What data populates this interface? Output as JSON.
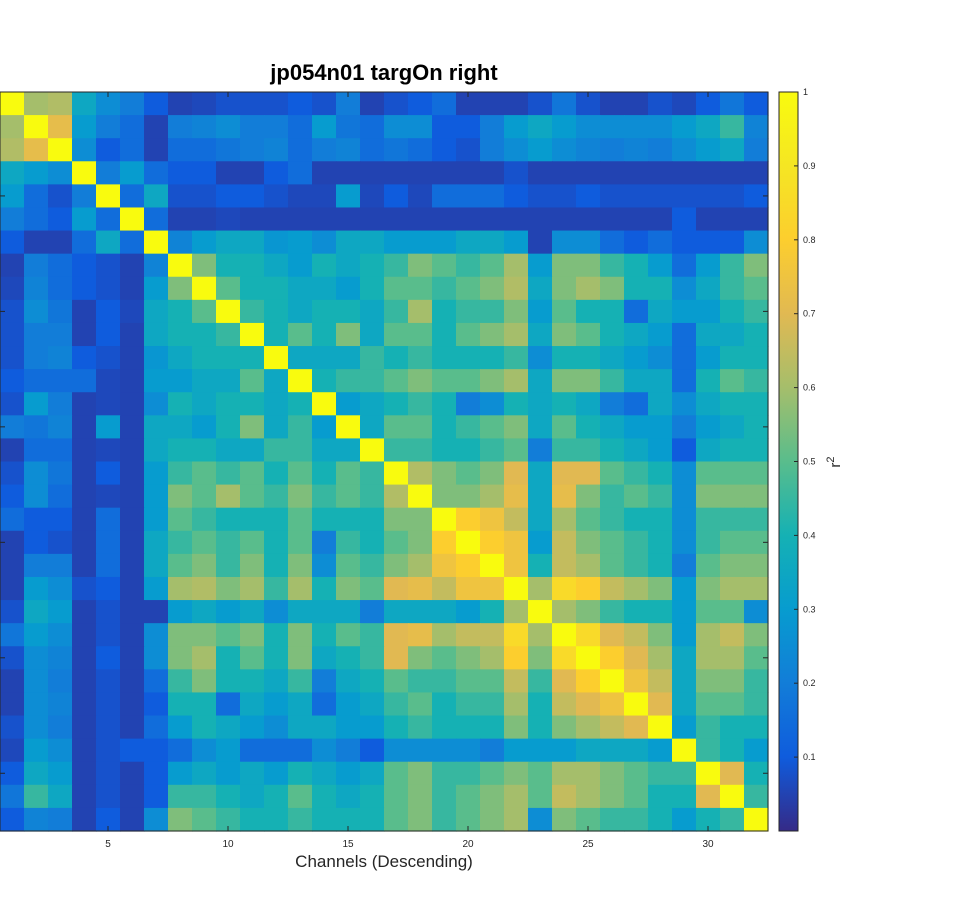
{
  "chart_data": {
    "type": "heatmap",
    "title": "jp054n01 targOn right",
    "xlabel": "Channels (Descending)",
    "ylabel": "",
    "colorbar_label": "r",
    "colorbar_label_superscript": "2",
    "x_ticks": [
      5,
      10,
      15,
      20,
      25,
      30
    ],
    "colorbar_ticks": [
      "1",
      "0.9",
      "0.8",
      "0.7",
      "0.6",
      "0.5",
      "0.4",
      "0.3",
      "0.2",
      "0.1"
    ],
    "colorbar_range": [
      0,
      1
    ],
    "colormap": "parula",
    "size": 32,
    "diagonal_value": 1.0,
    "matrix": [
      [
        1.0,
        0.6,
        0.62,
        0.35,
        0.25,
        0.2,
        0.1,
        0.05,
        0.06,
        0.08,
        0.08,
        0.08,
        0.1,
        0.08,
        0.2,
        0.05,
        0.08,
        0.1,
        0.15,
        0.05,
        0.05,
        0.05,
        0.08,
        0.18,
        0.08,
        0.05,
        0.05,
        0.08,
        0.06,
        0.1,
        0.18,
        0.1
      ],
      [
        0.6,
        1.0,
        0.72,
        0.3,
        0.2,
        0.15,
        0.05,
        0.2,
        0.22,
        0.25,
        0.2,
        0.2,
        0.15,
        0.3,
        0.18,
        0.15,
        0.25,
        0.25,
        0.1,
        0.1,
        0.2,
        0.3,
        0.35,
        0.3,
        0.25,
        0.25,
        0.25,
        0.25,
        0.3,
        0.35,
        0.45,
        0.22
      ],
      [
        0.62,
        0.72,
        1.0,
        0.25,
        0.1,
        0.15,
        0.05,
        0.15,
        0.15,
        0.18,
        0.2,
        0.22,
        0.15,
        0.2,
        0.22,
        0.15,
        0.18,
        0.15,
        0.1,
        0.08,
        0.2,
        0.25,
        0.3,
        0.25,
        0.22,
        0.2,
        0.22,
        0.2,
        0.25,
        0.3,
        0.35,
        0.2
      ],
      [
        0.35,
        0.3,
        0.25,
        1.0,
        0.2,
        0.3,
        0.15,
        0.1,
        0.1,
        0.05,
        0.05,
        0.1,
        0.15,
        0.05,
        0.05,
        0.05,
        0.05,
        0.05,
        0.05,
        0.05,
        0.05,
        0.08,
        0.05,
        0.05,
        0.05,
        0.05,
        0.05,
        0.05,
        0.05,
        0.05,
        0.05,
        0.05
      ],
      [
        0.3,
        0.15,
        0.08,
        0.2,
        1.0,
        0.15,
        0.35,
        0.08,
        0.08,
        0.1,
        0.1,
        0.08,
        0.06,
        0.06,
        0.3,
        0.06,
        0.1,
        0.06,
        0.15,
        0.15,
        0.15,
        0.1,
        0.08,
        0.08,
        0.1,
        0.08,
        0.08,
        0.08,
        0.08,
        0.08,
        0.08,
        0.1
      ],
      [
        0.2,
        0.15,
        0.1,
        0.3,
        0.15,
        1.0,
        0.15,
        0.05,
        0.05,
        0.06,
        0.05,
        0.05,
        0.05,
        0.05,
        0.05,
        0.05,
        0.05,
        0.05,
        0.05,
        0.05,
        0.05,
        0.05,
        0.05,
        0.05,
        0.05,
        0.05,
        0.05,
        0.05,
        0.1,
        0.05,
        0.05,
        0.05
      ],
      [
        0.1,
        0.05,
        0.05,
        0.15,
        0.35,
        0.15,
        1.0,
        0.22,
        0.3,
        0.35,
        0.35,
        0.28,
        0.3,
        0.25,
        0.35,
        0.35,
        0.3,
        0.3,
        0.3,
        0.35,
        0.35,
        0.3,
        0.05,
        0.25,
        0.25,
        0.15,
        0.1,
        0.15,
        0.1,
        0.1,
        0.1,
        0.25
      ],
      [
        0.05,
        0.2,
        0.15,
        0.1,
        0.08,
        0.05,
        0.22,
        1.0,
        0.55,
        0.4,
        0.4,
        0.35,
        0.3,
        0.4,
        0.35,
        0.4,
        0.45,
        0.55,
        0.5,
        0.45,
        0.5,
        0.6,
        0.3,
        0.55,
        0.55,
        0.45,
        0.4,
        0.3,
        0.15,
        0.3,
        0.45,
        0.55
      ],
      [
        0.06,
        0.22,
        0.15,
        0.1,
        0.08,
        0.05,
        0.3,
        0.55,
        1.0,
        0.5,
        0.4,
        0.4,
        0.35,
        0.35,
        0.3,
        0.4,
        0.5,
        0.5,
        0.45,
        0.5,
        0.55,
        0.62,
        0.35,
        0.55,
        0.6,
        0.55,
        0.4,
        0.4,
        0.25,
        0.35,
        0.45,
        0.5
      ],
      [
        0.08,
        0.25,
        0.18,
        0.05,
        0.1,
        0.06,
        0.35,
        0.4,
        0.5,
        1.0,
        0.45,
        0.4,
        0.35,
        0.4,
        0.4,
        0.35,
        0.45,
        0.6,
        0.4,
        0.45,
        0.45,
        0.55,
        0.3,
        0.5,
        0.4,
        0.4,
        0.15,
        0.35,
        0.3,
        0.3,
        0.4,
        0.45
      ],
      [
        0.08,
        0.2,
        0.2,
        0.05,
        0.1,
        0.05,
        0.35,
        0.4,
        0.4,
        0.45,
        1.0,
        0.4,
        0.5,
        0.4,
        0.55,
        0.35,
        0.5,
        0.5,
        0.4,
        0.5,
        0.55,
        0.6,
        0.35,
        0.55,
        0.5,
        0.4,
        0.35,
        0.3,
        0.15,
        0.35,
        0.35,
        0.4
      ],
      [
        0.08,
        0.2,
        0.22,
        0.1,
        0.08,
        0.05,
        0.28,
        0.35,
        0.4,
        0.4,
        0.4,
        1.0,
        0.35,
        0.35,
        0.35,
        0.45,
        0.4,
        0.45,
        0.4,
        0.4,
        0.4,
        0.45,
        0.25,
        0.4,
        0.4,
        0.35,
        0.3,
        0.25,
        0.15,
        0.3,
        0.4,
        0.4
      ],
      [
        0.1,
        0.15,
        0.15,
        0.15,
        0.06,
        0.05,
        0.3,
        0.3,
        0.35,
        0.35,
        0.5,
        0.35,
        1.0,
        0.4,
        0.45,
        0.45,
        0.5,
        0.55,
        0.5,
        0.5,
        0.55,
        0.6,
        0.35,
        0.55,
        0.55,
        0.45,
        0.35,
        0.35,
        0.15,
        0.4,
        0.5,
        0.45
      ],
      [
        0.08,
        0.3,
        0.2,
        0.05,
        0.06,
        0.05,
        0.25,
        0.4,
        0.35,
        0.4,
        0.4,
        0.35,
        0.4,
        1.0,
        0.3,
        0.35,
        0.4,
        0.45,
        0.4,
        0.2,
        0.25,
        0.4,
        0.35,
        0.4,
        0.35,
        0.2,
        0.15,
        0.35,
        0.25,
        0.35,
        0.4,
        0.4
      ],
      [
        0.2,
        0.18,
        0.22,
        0.05,
        0.3,
        0.05,
        0.35,
        0.35,
        0.3,
        0.4,
        0.55,
        0.35,
        0.45,
        0.3,
        1.0,
        0.35,
        0.5,
        0.5,
        0.4,
        0.45,
        0.5,
        0.55,
        0.35,
        0.5,
        0.4,
        0.35,
        0.3,
        0.3,
        0.2,
        0.3,
        0.35,
        0.4
      ],
      [
        0.05,
        0.15,
        0.15,
        0.05,
        0.06,
        0.05,
        0.35,
        0.4,
        0.4,
        0.35,
        0.35,
        0.45,
        0.45,
        0.35,
        0.35,
        1.0,
        0.45,
        0.45,
        0.4,
        0.4,
        0.45,
        0.5,
        0.2,
        0.45,
        0.45,
        0.4,
        0.35,
        0.3,
        0.1,
        0.35,
        0.4,
        0.4
      ],
      [
        0.08,
        0.25,
        0.18,
        0.05,
        0.1,
        0.05,
        0.3,
        0.45,
        0.5,
        0.45,
        0.5,
        0.4,
        0.5,
        0.4,
        0.5,
        0.45,
        1.0,
        0.62,
        0.55,
        0.5,
        0.55,
        0.7,
        0.35,
        0.7,
        0.7,
        0.5,
        0.45,
        0.4,
        0.25,
        0.5,
        0.5,
        0.5
      ],
      [
        0.1,
        0.25,
        0.15,
        0.05,
        0.06,
        0.05,
        0.3,
        0.55,
        0.5,
        0.6,
        0.5,
        0.45,
        0.55,
        0.45,
        0.5,
        0.45,
        0.62,
        1.0,
        0.55,
        0.55,
        0.6,
        0.72,
        0.35,
        0.72,
        0.55,
        0.45,
        0.5,
        0.45,
        0.25,
        0.55,
        0.55,
        0.55
      ],
      [
        0.15,
        0.1,
        0.1,
        0.05,
        0.15,
        0.05,
        0.3,
        0.5,
        0.45,
        0.4,
        0.4,
        0.4,
        0.5,
        0.4,
        0.4,
        0.4,
        0.55,
        0.55,
        1.0,
        0.8,
        0.75,
        0.65,
        0.35,
        0.6,
        0.5,
        0.45,
        0.4,
        0.4,
        0.25,
        0.45,
        0.45,
        0.45
      ],
      [
        0.05,
        0.1,
        0.08,
        0.05,
        0.15,
        0.05,
        0.35,
        0.45,
        0.5,
        0.45,
        0.5,
        0.4,
        0.5,
        0.2,
        0.45,
        0.4,
        0.5,
        0.55,
        0.8,
        1.0,
        0.8,
        0.75,
        0.3,
        0.65,
        0.55,
        0.5,
        0.45,
        0.4,
        0.25,
        0.45,
        0.5,
        0.5
      ],
      [
        0.05,
        0.2,
        0.2,
        0.05,
        0.15,
        0.05,
        0.35,
        0.5,
        0.55,
        0.45,
        0.55,
        0.4,
        0.55,
        0.25,
        0.5,
        0.45,
        0.55,
        0.6,
        0.75,
        0.8,
        1.0,
        0.75,
        0.4,
        0.65,
        0.6,
        0.5,
        0.45,
        0.4,
        0.2,
        0.5,
        0.55,
        0.55
      ],
      [
        0.05,
        0.3,
        0.25,
        0.08,
        0.1,
        0.05,
        0.3,
        0.6,
        0.62,
        0.55,
        0.6,
        0.45,
        0.6,
        0.4,
        0.55,
        0.5,
        0.7,
        0.72,
        0.65,
        0.75,
        0.75,
        1.0,
        0.6,
        0.85,
        0.8,
        0.65,
        0.6,
        0.55,
        0.3,
        0.55,
        0.6,
        0.6
      ],
      [
        0.08,
        0.35,
        0.3,
        0.05,
        0.08,
        0.05,
        0.05,
        0.3,
        0.35,
        0.3,
        0.35,
        0.25,
        0.35,
        0.35,
        0.35,
        0.2,
        0.35,
        0.35,
        0.35,
        0.3,
        0.4,
        0.6,
        1.0,
        0.6,
        0.55,
        0.45,
        0.4,
        0.4,
        0.3,
        0.5,
        0.5,
        0.25
      ],
      [
        0.18,
        0.3,
        0.25,
        0.05,
        0.08,
        0.05,
        0.25,
        0.55,
        0.55,
        0.5,
        0.55,
        0.4,
        0.55,
        0.4,
        0.5,
        0.45,
        0.7,
        0.72,
        0.6,
        0.65,
        0.65,
        0.85,
        0.6,
        1.0,
        0.85,
        0.7,
        0.65,
        0.55,
        0.3,
        0.6,
        0.65,
        0.55
      ],
      [
        0.08,
        0.25,
        0.22,
        0.05,
        0.1,
        0.05,
        0.25,
        0.55,
        0.6,
        0.4,
        0.5,
        0.4,
        0.55,
        0.35,
        0.4,
        0.45,
        0.7,
        0.55,
        0.5,
        0.55,
        0.6,
        0.8,
        0.55,
        0.85,
        1.0,
        0.8,
        0.7,
        0.6,
        0.35,
        0.6,
        0.6,
        0.5
      ],
      [
        0.05,
        0.25,
        0.2,
        0.05,
        0.08,
        0.05,
        0.15,
        0.45,
        0.55,
        0.4,
        0.4,
        0.35,
        0.45,
        0.2,
        0.35,
        0.4,
        0.5,
        0.45,
        0.45,
        0.5,
        0.5,
        0.65,
        0.45,
        0.7,
        0.8,
        1.0,
        0.75,
        0.65,
        0.35,
        0.55,
        0.55,
        0.45
      ],
      [
        0.05,
        0.25,
        0.22,
        0.05,
        0.08,
        0.05,
        0.1,
        0.4,
        0.4,
        0.15,
        0.35,
        0.3,
        0.35,
        0.15,
        0.3,
        0.35,
        0.45,
        0.5,
        0.4,
        0.45,
        0.45,
        0.6,
        0.4,
        0.65,
        0.7,
        0.75,
        1.0,
        0.7,
        0.35,
        0.5,
        0.5,
        0.45
      ],
      [
        0.08,
        0.25,
        0.2,
        0.05,
        0.08,
        0.05,
        0.15,
        0.3,
        0.4,
        0.35,
        0.3,
        0.25,
        0.35,
        0.35,
        0.3,
        0.3,
        0.4,
        0.45,
        0.4,
        0.4,
        0.4,
        0.55,
        0.4,
        0.55,
        0.6,
        0.65,
        0.7,
        1.0,
        0.3,
        0.45,
        0.4,
        0.4
      ],
      [
        0.06,
        0.3,
        0.25,
        0.05,
        0.08,
        0.1,
        0.1,
        0.15,
        0.25,
        0.3,
        0.15,
        0.15,
        0.15,
        0.25,
        0.2,
        0.1,
        0.25,
        0.25,
        0.25,
        0.25,
        0.2,
        0.3,
        0.3,
        0.3,
        0.35,
        0.35,
        0.35,
        0.3,
        1.0,
        0.45,
        0.4,
        0.3
      ],
      [
        0.1,
        0.35,
        0.3,
        0.05,
        0.08,
        0.05,
        0.1,
        0.3,
        0.35,
        0.3,
        0.35,
        0.3,
        0.4,
        0.35,
        0.3,
        0.35,
        0.5,
        0.55,
        0.45,
        0.45,
        0.5,
        0.55,
        0.5,
        0.6,
        0.6,
        0.55,
        0.5,
        0.45,
        0.45,
        1.0,
        0.7,
        0.4
      ],
      [
        0.18,
        0.45,
        0.35,
        0.05,
        0.08,
        0.05,
        0.1,
        0.45,
        0.45,
        0.4,
        0.35,
        0.4,
        0.5,
        0.4,
        0.35,
        0.4,
        0.5,
        0.55,
        0.45,
        0.5,
        0.55,
        0.6,
        0.5,
        0.65,
        0.6,
        0.55,
        0.5,
        0.4,
        0.4,
        0.7,
        1.0,
        0.45
      ],
      [
        0.1,
        0.22,
        0.2,
        0.05,
        0.1,
        0.05,
        0.25,
        0.55,
        0.5,
        0.45,
        0.4,
        0.4,
        0.45,
        0.4,
        0.4,
        0.4,
        0.5,
        0.55,
        0.45,
        0.5,
        0.55,
        0.6,
        0.25,
        0.55,
        0.5,
        0.45,
        0.45,
        0.4,
        0.3,
        0.4,
        0.45,
        1.0
      ]
    ]
  }
}
